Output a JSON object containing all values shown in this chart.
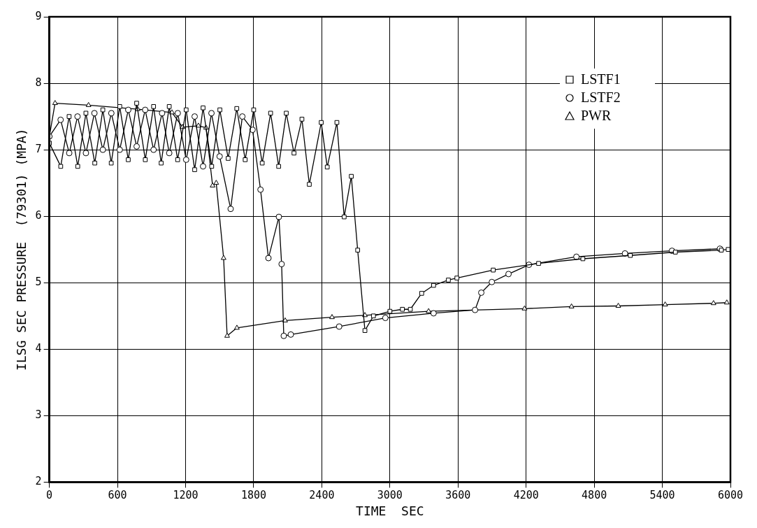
{
  "chart_data": {
    "type": "line",
    "xlabel": "TIME  SEC",
    "ylabel": "ILSG SEC PRESSURE  (79301) (MPA)",
    "xlim": [
      0,
      6000
    ],
    "xticks": [
      0,
      600,
      1200,
      1800,
      2400,
      3000,
      3600,
      4200,
      4800,
      5400,
      6000
    ],
    "ylim": [
      2,
      9
    ],
    "yticks": [
      2,
      3,
      4,
      5,
      6,
      7,
      8,
      9
    ],
    "grid": true,
    "legend": "top right",
    "line_style": "solid",
    "series": [
      {
        "name": "LSTF1",
        "color": "#000000",
        "marker": "square",
        "x": [
          0,
          100,
          174,
          250,
          322,
          400,
          471,
          545,
          620,
          695,
          769,
          845,
          918,
          985,
          1056,
          1130,
          1205,
          1280,
          1354,
          1430,
          1502,
          1575,
          1651,
          1725,
          1800,
          1875,
          1949,
          2020,
          2087,
          2155,
          2225,
          2290,
          2395,
          2448,
          2533,
          2597,
          2660,
          2716,
          2780,
          2855,
          3000,
          3110,
          3180,
          3280,
          3385,
          3515,
          3590,
          3910,
          4310,
          4700,
          5118,
          5515,
          5920,
          5980
        ],
        "values": [
          7.1,
          6.75,
          7.5,
          6.75,
          7.55,
          6.8,
          7.6,
          6.8,
          7.65,
          6.85,
          7.7,
          6.85,
          7.65,
          6.8,
          7.65,
          6.85,
          7.6,
          6.7,
          7.63,
          6.75,
          7.6,
          6.87,
          7.62,
          6.85,
          7.6,
          6.8,
          7.55,
          6.75,
          7.55,
          6.95,
          7.46,
          6.48,
          7.41,
          6.74,
          7.41,
          5.99,
          6.6,
          5.49,
          4.28,
          4.5,
          4.57,
          4.6,
          4.6,
          4.84,
          4.96,
          5.04,
          5.07,
          5.19,
          5.29,
          5.36,
          5.41,
          5.46,
          5.49,
          5.5
        ]
      },
      {
        "name": "LSTF2",
        "color": "#000000",
        "marker": "circle",
        "x": [
          0,
          99,
          175,
          248,
          322,
          397,
          471,
          546,
          620,
          695,
          769,
          844,
          918,
          993,
          1056,
          1131,
          1205,
          1280,
          1354,
          1428,
          1500,
          1597,
          1700,
          1790,
          1860,
          1930,
          2022,
          2046,
          2065,
          2127,
          2553,
          2960,
          3385,
          3750,
          3805,
          3898,
          4045,
          4225,
          4643,
          5071,
          5485,
          5908
        ],
        "values": [
          7.2,
          7.45,
          6.95,
          7.5,
          6.95,
          7.55,
          7.0,
          7.55,
          7.0,
          7.6,
          7.05,
          7.6,
          7.0,
          7.55,
          6.95,
          7.55,
          6.85,
          7.5,
          6.75,
          7.55,
          6.9,
          6.11,
          7.5,
          7.3,
          6.4,
          5.37,
          5.99,
          5.28,
          4.2,
          4.22,
          4.34,
          4.47,
          4.54,
          4.59,
          4.85,
          5.01,
          5.13,
          5.27,
          5.39,
          5.44,
          5.48,
          5.51
        ]
      },
      {
        "name": "PWR",
        "color": "#000000",
        "marker": "triangle",
        "x": [
          0,
          50,
          345,
          778,
          1080,
          1173,
          1313,
          1380,
          1438,
          1470,
          1535,
          1566,
          1652,
          2077,
          2490,
          2780,
          3341,
          4186,
          4600,
          5012,
          5425,
          5851,
          5968
        ],
        "values": [
          7.2,
          7.7,
          7.67,
          7.61,
          7.56,
          7.34,
          7.36,
          7.33,
          6.46,
          6.5,
          5.37,
          4.2,
          4.32,
          4.43,
          4.48,
          4.51,
          4.57,
          4.61,
          4.64,
          4.65,
          4.67,
          4.69,
          4.7
        ]
      }
    ]
  }
}
